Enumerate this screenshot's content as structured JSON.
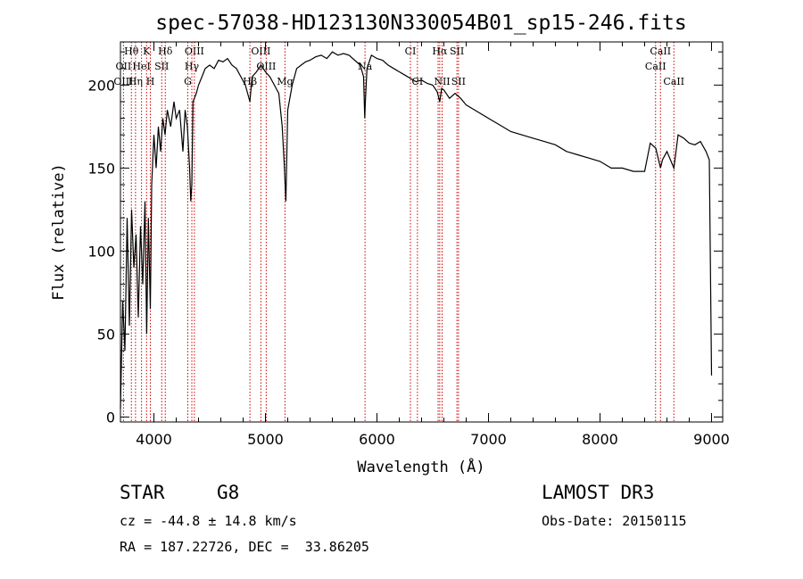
{
  "chart_data": {
    "type": "line",
    "title": "spec-57038-HD123130N330054B01_sp15-246.fits",
    "xlabel": "Wavelength (Å)",
    "ylabel": "Flux (relative)",
    "xlim": [
      3700,
      9100
    ],
    "ylim": [
      -3,
      226
    ],
    "xticks": [
      4000,
      5000,
      6000,
      7000,
      8000,
      9000
    ],
    "yticks": [
      0,
      50,
      100,
      150,
      200
    ],
    "series": [
      {
        "name": "flux",
        "x": [
          3700,
          3720,
          3740,
          3760,
          3780,
          3800,
          3820,
          3840,
          3860,
          3880,
          3900,
          3920,
          3935,
          3950,
          3968,
          3980,
          4000,
          4020,
          4040,
          4060,
          4080,
          4100,
          4120,
          4150,
          4180,
          4200,
          4230,
          4260,
          4280,
          4300,
          4320,
          4330,
          4340,
          4350,
          4380,
          4400,
          4430,
          4460,
          4500,
          4540,
          4580,
          4620,
          4660,
          4700,
          4740,
          4780,
          4820,
          4861,
          4880,
          4920,
          4960,
          5000,
          5040,
          5080,
          5120,
          5150,
          5170,
          5183,
          5200,
          5240,
          5280,
          5320,
          5360,
          5400,
          5450,
          5500,
          5550,
          5600,
          5650,
          5700,
          5750,
          5800,
          5850,
          5880,
          5890,
          5896,
          5910,
          5950,
          6000,
          6050,
          6100,
          6150,
          6200,
          6250,
          6300,
          6350,
          6400,
          6450,
          6500,
          6540,
          6563,
          6580,
          6600,
          6650,
          6700,
          6750,
          6800,
          6850,
          6900,
          7000,
          7100,
          7200,
          7300,
          7400,
          7500,
          7600,
          7700,
          7800,
          7900,
          8000,
          8100,
          8200,
          8300,
          8400,
          8450,
          8500,
          8542,
          8560,
          8600,
          8662,
          8700,
          8750,
          8800,
          8850,
          8900,
          8950,
          8980,
          9000
        ],
        "y": [
          5,
          70,
          40,
          120,
          55,
          125,
          90,
          110,
          60,
          115,
          80,
          130,
          50,
          120,
          65,
          140,
          170,
          150,
          175,
          160,
          180,
          170,
          185,
          175,
          190,
          180,
          185,
          160,
          185,
          175,
          150,
          130,
          140,
          190,
          195,
          200,
          205,
          210,
          212,
          210,
          215,
          214,
          216,
          212,
          210,
          205,
          200,
          190,
          205,
          208,
          212,
          208,
          205,
          200,
          195,
          175,
          150,
          130,
          185,
          200,
          210,
          212,
          214,
          215,
          217,
          218,
          216,
          220,
          218,
          219,
          218,
          215,
          212,
          205,
          180,
          190,
          210,
          218,
          216,
          215,
          212,
          210,
          208,
          206,
          204,
          202,
          203,
          201,
          200,
          196,
          190,
          198,
          197,
          192,
          195,
          192,
          188,
          186,
          184,
          180,
          176,
          172,
          170,
          168,
          166,
          164,
          160,
          158,
          156,
          154,
          150,
          150,
          148,
          148,
          165,
          162,
          150,
          155,
          160,
          150,
          170,
          168,
          165,
          164,
          166,
          160,
          155,
          25
        ]
      }
    ],
    "spectral_lines": [
      {
        "label": "Hθ",
        "x": 3798,
        "row": 0
      },
      {
        "label": "K",
        "x": 3934,
        "row": 0
      },
      {
        "label": "Hδ",
        "x": 4102,
        "row": 0
      },
      {
        "label": "OIII",
        "x": 4363,
        "row": 0
      },
      {
        "label": "OIII",
        "x": 4959,
        "row": 0
      },
      {
        "label": "CI",
        "x": 6300,
        "row": 0
      },
      {
        "label": "Hα",
        "x": 6563,
        "row": 0
      },
      {
        "label": "SII",
        "x": 6717,
        "row": 0
      },
      {
        "label": "CaII",
        "x": 8542,
        "row": 0
      },
      {
        "label": "OII",
        "x": 3727,
        "row": 1
      },
      {
        "label": "HeI",
        "x": 3889,
        "row": 1
      },
      {
        "label": "SII",
        "x": 4070,
        "row": 1
      },
      {
        "label": "Hγ",
        "x": 4340,
        "row": 1
      },
      {
        "label": "OIII",
        "x": 5007,
        "row": 1
      },
      {
        "label": "Na",
        "x": 5893,
        "row": 1
      },
      {
        "label": "CaII",
        "x": 8498,
        "row": 1
      },
      {
        "label": "OIII",
        "x": 3727,
        "row": 2
      },
      {
        "label": "Hη",
        "x": 3835,
        "row": 2
      },
      {
        "label": "H",
        "x": 3968,
        "row": 2
      },
      {
        "label": "G",
        "x": 4304,
        "row": 2
      },
      {
        "label": "Hβ",
        "x": 4861,
        "row": 2
      },
      {
        "label": "Mg",
        "x": 5175,
        "row": 2
      },
      {
        "label": "CI",
        "x": 6363,
        "row": 2
      },
      {
        "label": "NII",
        "x": 6584,
        "row": 2
      },
      {
        "label": "SII",
        "x": 6731,
        "row": 2
      },
      {
        "label": "CaII",
        "x": 8662,
        "row": 2
      }
    ],
    "line_markers_x": [
      3727,
      3798,
      3835,
      3889,
      3934,
      3968,
      4070,
      4102,
      4304,
      4340,
      4363,
      4861,
      4959,
      5007,
      5175,
      5893,
      6300,
      6363,
      6548,
      6563,
      6584,
      6717,
      6731,
      8498,
      8542,
      8662
    ]
  },
  "info": {
    "object_class": "STAR",
    "subclass": "G8",
    "survey": "LAMOST DR3",
    "cz": "cz = -44.8 ± 14.8 km/s",
    "obs_date": "Obs-Date: 20150115",
    "coords": "RA = 187.22726, DEC =  33.86205"
  },
  "colors": {
    "spectrum": "#000000",
    "line_markers": "#cc0000",
    "axes": "#000000"
  }
}
